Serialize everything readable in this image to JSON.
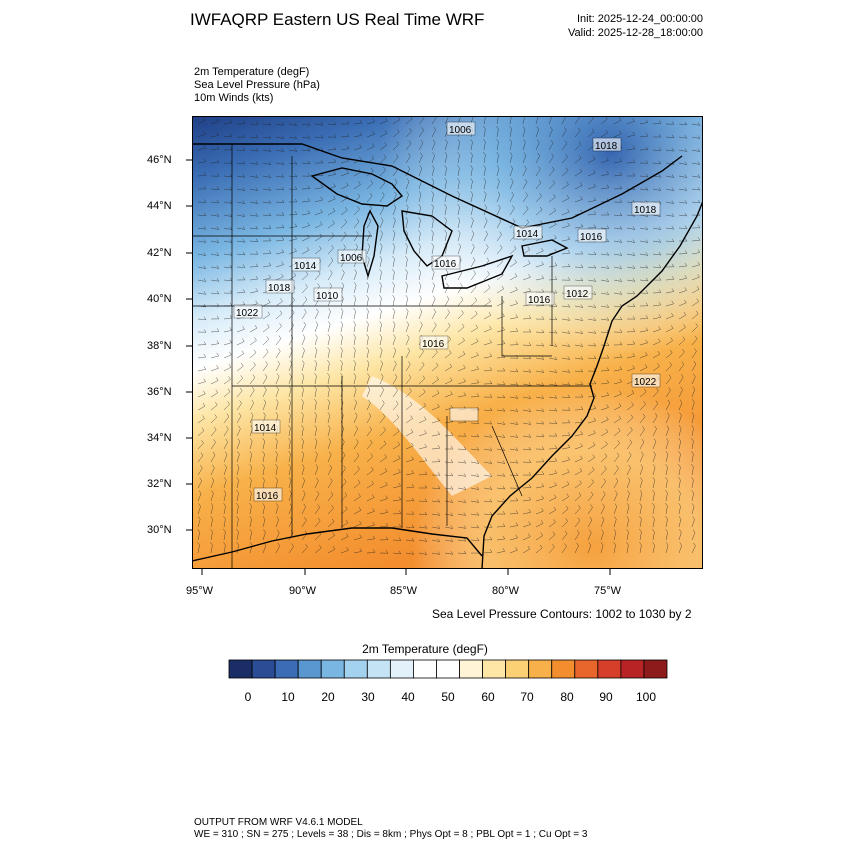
{
  "header": {
    "title": "IWFAQRP Eastern US Real Time WRF",
    "init": "Init: 2025-12-24_00:00:00",
    "valid": "Valid: 2025-12-28_18:00:00"
  },
  "fields": [
    "2m Temperature   (degF)",
    "Sea Level Pressure   (hPa)",
    "10m Winds   (kts)"
  ],
  "map": {
    "lat_labels": [
      "46°N",
      "44°N",
      "42°N",
      "40°N",
      "38°N",
      "36°N",
      "34°N",
      "32°N",
      "30°N"
    ],
    "lon_labels": [
      "95°W",
      "90°W",
      "85°W",
      "80°W",
      "75°W"
    ],
    "pressure_labels": [
      "1006",
      "1018",
      "1018",
      "1014",
      "1016",
      "1006",
      "1014",
      "1016",
      "1010",
      "1022",
      "1018",
      "1016",
      "1012",
      "1022",
      "1016",
      "1014",
      "1016"
    ]
  },
  "contour_note": "Sea Level Pressure Contours: 1002 to 1030 by 2",
  "colorbar": {
    "title": "2m Temperature  (degF)",
    "labels": [
      "0",
      "10",
      "20",
      "30",
      "40",
      "50",
      "60",
      "70",
      "80",
      "90",
      "100"
    ],
    "colors": [
      "#1a2d66",
      "#2a4d96",
      "#3c6cb5",
      "#5a96d0",
      "#7ab6e2",
      "#a3d2ef",
      "#c4e3f5",
      "#e3f1fb",
      "#ffffff",
      "#ffffff",
      "#fff5d6",
      "#fde6a6",
      "#fbd074",
      "#f8b14a",
      "#f38e2e",
      "#e8652b",
      "#d63f29",
      "#b82325",
      "#8e1b1b"
    ]
  },
  "footer": {
    "line1": "OUTPUT FROM WRF V4.6.1 MODEL",
    "line2": "WE = 310 ; SN = 275 ; Levels = 38 ; Dis = 8km ; Phys Opt = 8 ; PBL Opt = 1 ; Cu Opt = 3"
  }
}
